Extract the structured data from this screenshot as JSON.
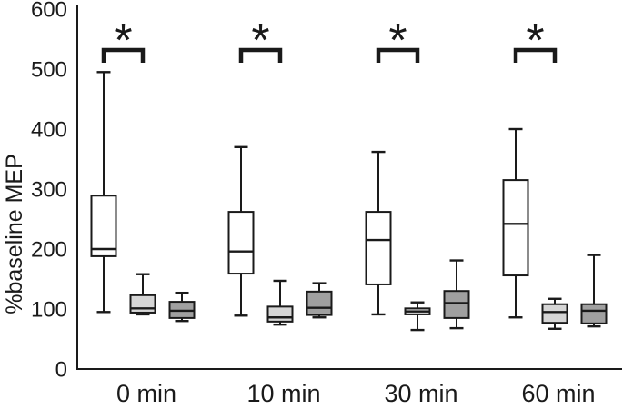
{
  "figure": {
    "background": "#ffffff",
    "stroke_color": "#1a1a1a"
  },
  "chart_data": {
    "type": "boxplot",
    "title": "",
    "xlabel": "",
    "ylabel": "%baseline MEP",
    "ylim": [
      0,
      600
    ],
    "yticks": [
      0,
      100,
      200,
      300,
      400,
      500,
      600
    ],
    "categories": [
      "0 min",
      "10 min",
      "30 min",
      "60 min"
    ],
    "grid": false,
    "legend": "none",
    "series": [
      {
        "name": "white-box-series",
        "fill": "#ffffff",
        "stroke": "#1a1a1a",
        "boxes": [
          {
            "low": 95,
            "q1": 188,
            "median": 200,
            "q3": 289,
            "high": 495
          },
          {
            "low": 89,
            "q1": 159,
            "median": 196,
            "q3": 262,
            "high": 370
          },
          {
            "low": 91,
            "q1": 141,
            "median": 215,
            "q3": 262,
            "high": 362
          },
          {
            "low": 86,
            "q1": 156,
            "median": 242,
            "q3": 315,
            "high": 400
          }
        ]
      },
      {
        "name": "light-gray-box-series",
        "fill": "#d6d6d6",
        "stroke": "#1a1a1a",
        "boxes": [
          {
            "low": 91,
            "q1": 94,
            "median": 101,
            "q3": 123,
            "high": 158
          },
          {
            "low": 74,
            "q1": 79,
            "median": 86,
            "q3": 104,
            "high": 147
          },
          {
            "low": 65,
            "q1": 91,
            "median": 96,
            "q3": 101,
            "high": 111
          },
          {
            "low": 67,
            "q1": 77,
            "median": 95,
            "q3": 108,
            "high": 117
          }
        ]
      },
      {
        "name": "dark-gray-box-series",
        "fill": "#a0a0a0",
        "stroke": "#1a1a1a",
        "boxes": [
          {
            "low": 80,
            "q1": 85,
            "median": 97,
            "q3": 112,
            "high": 127
          },
          {
            "low": 86,
            "q1": 90,
            "median": 102,
            "q3": 129,
            "high": 143
          },
          {
            "low": 68,
            "q1": 85,
            "median": 110,
            "q3": 130,
            "high": 181
          },
          {
            "low": 71,
            "q1": 76,
            "median": 97,
            "q3": 108,
            "high": 190
          }
        ]
      }
    ],
    "significance": {
      "symbol": "*",
      "comparisons": [
        {
          "category": "0 min",
          "between": [
            0,
            1
          ]
        },
        {
          "category": "10 min",
          "between": [
            0,
            1
          ]
        },
        {
          "category": "30 min",
          "between": [
            0,
            1
          ]
        },
        {
          "category": "60 min",
          "between": [
            0,
            1
          ]
        }
      ]
    }
  }
}
